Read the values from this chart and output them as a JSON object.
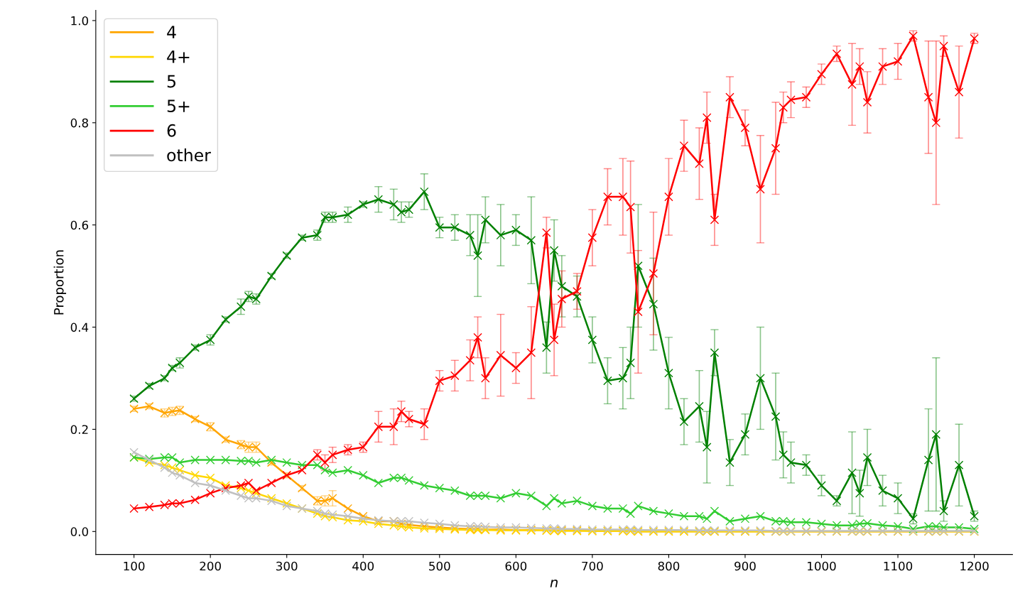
{
  "chart_data": {
    "type": "line",
    "xlabel": "n",
    "ylabel": "Proportion",
    "x": [
      100,
      120,
      140,
      150,
      160,
      180,
      200,
      220,
      240,
      250,
      260,
      280,
      300,
      320,
      340,
      350,
      360,
      380,
      400,
      420,
      440,
      450,
      460,
      480,
      500,
      520,
      540,
      550,
      560,
      580,
      600,
      620,
      640,
      650,
      660,
      680,
      700,
      720,
      740,
      750,
      760,
      780,
      800,
      820,
      840,
      850,
      860,
      880,
      900,
      920,
      940,
      950,
      960,
      980,
      1000,
      1020,
      1040,
      1050,
      1060,
      1080,
      1100,
      1120,
      1140,
      1150,
      1160,
      1180,
      1200
    ],
    "series": [
      {
        "name": "4",
        "color": "#ffa500",
        "values": [
          0.24,
          0.245,
          0.232,
          0.235,
          0.237,
          0.22,
          0.205,
          0.18,
          0.17,
          0.165,
          0.165,
          0.135,
          0.11,
          0.085,
          0.06,
          0.06,
          0.065,
          0.045,
          0.03,
          0.02,
          0.02,
          0.015,
          0.013,
          0.01,
          0.008,
          0.006,
          0.005,
          0.005,
          0.004,
          0.004,
          0.003,
          0.003,
          0.002,
          0.002,
          0.002,
          0.002,
          0.001,
          0.001,
          0.001,
          0.001,
          0,
          0,
          0,
          0,
          0,
          0,
          0,
          0,
          0,
          0,
          0,
          0,
          0,
          0,
          0,
          0,
          0,
          0,
          0,
          0,
          0,
          0,
          0,
          0,
          0,
          0,
          0
        ],
        "errors": [
          0.005,
          0.005,
          0.008,
          0.008,
          0.008,
          0.005,
          0.008,
          0.005,
          0.008,
          0.01,
          0.01,
          0.005,
          0.005,
          0.005,
          0.008,
          0.01,
          0.015,
          null,
          null,
          null,
          null,
          null,
          null,
          null,
          null,
          null,
          null,
          null,
          null,
          null,
          null,
          null,
          null,
          null,
          null,
          null,
          null,
          null,
          null,
          null,
          null,
          null,
          null,
          null,
          null,
          null,
          null,
          null,
          null,
          null,
          null,
          null,
          null,
          null,
          null,
          null,
          null,
          null,
          null,
          null,
          null,
          null,
          null,
          null,
          null,
          null,
          null
        ]
      },
      {
        "name": "4+",
        "color": "#ffd700",
        "values": [
          0.145,
          0.135,
          0.13,
          0.125,
          0.12,
          0.11,
          0.105,
          0.09,
          0.085,
          0.08,
          0.075,
          0.065,
          0.055,
          0.045,
          0.035,
          0.03,
          0.028,
          0.022,
          0.02,
          0.015,
          0.012,
          0.01,
          0.008,
          0.006,
          0.005,
          0.004,
          0.003,
          0.003,
          0.003,
          0.002,
          0.002,
          0.002,
          0.002,
          0.001,
          0.001,
          0.001,
          0.001,
          0.001,
          0.001,
          0.001,
          0,
          0,
          0,
          0,
          0,
          0,
          0,
          0,
          0,
          0,
          0,
          0,
          0,
          0,
          0,
          0,
          0,
          0,
          0,
          0,
          0,
          0,
          0,
          0,
          0,
          0,
          0
        ]
      },
      {
        "name": "5",
        "color": "#008000",
        "values": [
          0.26,
          0.285,
          0.3,
          0.32,
          0.33,
          0.36,
          0.375,
          0.415,
          0.44,
          0.46,
          0.455,
          0.5,
          0.54,
          0.575,
          0.58,
          0.615,
          0.615,
          0.62,
          0.64,
          0.65,
          0.64,
          0.625,
          0.63,
          0.665,
          0.595,
          0.595,
          0.58,
          0.54,
          0.61,
          0.58,
          0.59,
          0.57,
          0.36,
          0.55,
          0.48,
          0.46,
          0.375,
          0.295,
          0.3,
          0.33,
          0.52,
          0.445,
          0.31,
          0.215,
          0.245,
          0.165,
          0.35,
          0.135,
          0.19,
          0.3,
          0.225,
          0.15,
          0.135,
          0.13,
          0.09,
          0.06,
          0.115,
          0.075,
          0.145,
          0.08,
          0.065,
          0.025,
          0.14,
          0.19,
          0.04,
          0.13,
          0.03
        ],
        "errors": [
          0.005,
          0.005,
          0.005,
          0.005,
          0.01,
          0.005,
          0.01,
          0.005,
          0.015,
          0.01,
          0.01,
          0.005,
          0.005,
          0.005,
          0.01,
          0.01,
          0.01,
          0.015,
          0.005,
          0.025,
          0.03,
          0.02,
          0.015,
          0.035,
          0.02,
          0.025,
          0.04,
          0.08,
          0.045,
          0.06,
          0.03,
          0.085,
          0.05,
          0.06,
          0.06,
          0.04,
          0.045,
          0.045,
          0.06,
          0.07,
          0.12,
          0.09,
          0.07,
          0.045,
          0.07,
          0.07,
          0.045,
          0.045,
          0.04,
          0.1,
          0.085,
          0.045,
          0.04,
          0.02,
          0.02,
          0.01,
          0.08,
          0.045,
          0.055,
          0.03,
          0.03,
          0.01,
          0.1,
          0.15,
          0.02,
          0.08,
          0.01
        ]
      },
      {
        "name": "5+",
        "color": "#32cd32",
        "values": [
          0.145,
          0.142,
          0.145,
          0.145,
          0.135,
          0.14,
          0.14,
          0.14,
          0.138,
          0.138,
          0.135,
          0.14,
          0.135,
          0.13,
          0.13,
          0.12,
          0.115,
          0.12,
          0.11,
          0.095,
          0.105,
          0.105,
          0.1,
          0.09,
          0.085,
          0.08,
          0.07,
          0.07,
          0.07,
          0.065,
          0.075,
          0.07,
          0.05,
          0.065,
          0.055,
          0.06,
          0.05,
          0.045,
          0.045,
          0.035,
          0.05,
          0.04,
          0.035,
          0.03,
          0.03,
          0.025,
          0.04,
          0.02,
          0.025,
          0.03,
          0.02,
          0.02,
          0.018,
          0.018,
          0.015,
          0.012,
          0.012,
          0.015,
          0.016,
          0.012,
          0.01,
          0.005,
          0.01,
          0.01,
          0.008,
          0.008,
          0.005
        ]
      },
      {
        "name": "6",
        "color": "#ff0000",
        "values": [
          0.045,
          0.048,
          0.052,
          0.055,
          0.055,
          0.062,
          0.075,
          0.085,
          0.09,
          0.095,
          0.08,
          0.095,
          0.11,
          0.12,
          0.15,
          0.135,
          0.15,
          0.16,
          0.165,
          0.205,
          0.205,
          0.235,
          0.22,
          0.21,
          0.295,
          0.305,
          0.335,
          0.38,
          0.3,
          0.345,
          0.32,
          0.35,
          0.585,
          0.375,
          0.455,
          0.47,
          0.575,
          0.655,
          0.655,
          0.635,
          0.43,
          0.505,
          0.655,
          0.755,
          0.72,
          0.81,
          0.61,
          0.85,
          0.79,
          0.67,
          0.75,
          0.83,
          0.845,
          0.85,
          0.895,
          0.935,
          0.875,
          0.91,
          0.84,
          0.91,
          0.92,
          0.97,
          0.85,
          0.8,
          0.95,
          0.86,
          0.965
        ],
        "errors": [
          null,
          null,
          null,
          null,
          null,
          null,
          null,
          null,
          null,
          null,
          null,
          null,
          null,
          null,
          0.01,
          0.015,
          0.015,
          0.01,
          0.01,
          0.03,
          0.035,
          0.02,
          0.015,
          0.03,
          0.02,
          0.03,
          0.04,
          0.04,
          0.04,
          0.08,
          0.03,
          0.09,
          0.03,
          0.07,
          0.055,
          0.035,
          0.055,
          0.055,
          0.075,
          0.09,
          0.12,
          0.12,
          0.075,
          0.05,
          0.07,
          0.05,
          0.05,
          0.04,
          0.035,
          0.105,
          0.09,
          0.03,
          0.035,
          0.02,
          0.02,
          0.015,
          0.08,
          0.035,
          0.06,
          0.035,
          0.035,
          0.01,
          0.11,
          0.16,
          0.02,
          0.09,
          0.01
        ]
      },
      {
        "name": "other",
        "color": "#c0c0c0",
        "values": [
          0.155,
          0.14,
          0.125,
          0.115,
          0.11,
          0.095,
          0.09,
          0.08,
          0.07,
          0.065,
          0.065,
          0.06,
          0.05,
          0.045,
          0.04,
          0.035,
          0.033,
          0.03,
          0.025,
          0.022,
          0.02,
          0.02,
          0.02,
          0.017,
          0.015,
          0.012,
          0.01,
          0.01,
          0.009,
          0.008,
          0.008,
          0.007,
          0.006,
          0.006,
          0.005,
          0.005,
          0.004,
          0.004,
          0.004,
          0.004,
          0.003,
          0.003,
          0.003,
          0.003,
          0.002,
          0.002,
          0.002,
          0.002,
          0.002,
          0.002,
          0.001,
          0.001,
          0.001,
          0.001,
          0.001,
          0.001,
          0.001,
          0.001,
          0.001,
          0.001,
          0.001,
          0.001,
          0.001,
          0.001,
          0.001,
          0.001,
          0.001
        ]
      }
    ],
    "xlim": [
      50,
      1250
    ],
    "xticks": [
      100,
      200,
      300,
      400,
      500,
      600,
      700,
      800,
      900,
      1000,
      1100,
      1200
    ],
    "ylim": [
      -0.045,
      1.02
    ],
    "yticks": [
      {
        "value": 0,
        "label": "0.0"
      },
      {
        "value": 0.2,
        "label": "0.2"
      },
      {
        "value": 0.4,
        "label": "0.4"
      },
      {
        "value": 0.6,
        "label": "0.6"
      },
      {
        "value": 0.8,
        "label": "0.8"
      },
      {
        "value": 1,
        "label": "1.0"
      }
    ],
    "marker": "cross",
    "line_style": "solid",
    "grid": false,
    "legend": "top left"
  }
}
